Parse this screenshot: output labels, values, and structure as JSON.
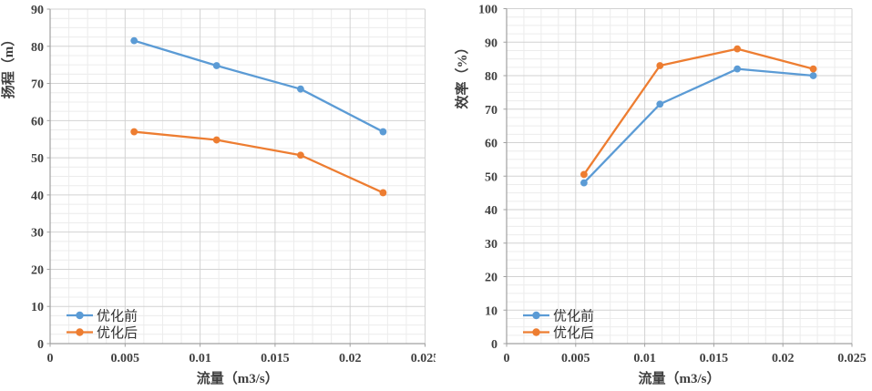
{
  "figure_title": "",
  "colors": {
    "background": "#ffffff",
    "series_blue": "#5B9BD5",
    "series_orange": "#ED7D31",
    "major_grid": "#D2D2D2",
    "minor_grid": "#ECECEC",
    "axis_line": "#A0A0A0",
    "tick_text": "#3f3f3f"
  },
  "chart_data": [
    {
      "type": "line",
      "title": "",
      "xlabel": "流量（m3/s）",
      "ylabel": "扬程（m）",
      "x": [
        0.0056,
        0.0111,
        0.0167,
        0.0222
      ],
      "series": [
        {
          "name": "优化前",
          "color": "#5B9BD5",
          "values": [
            81.5,
            74.8,
            68.5,
            57.0
          ]
        },
        {
          "name": "优化后",
          "color": "#ED7D31",
          "values": [
            57.0,
            54.8,
            50.7,
            40.6
          ]
        }
      ],
      "xlim": [
        0,
        0.025
      ],
      "ylim": [
        0,
        90
      ],
      "x_ticks": {
        "values": [
          0,
          0.005,
          0.01,
          0.015,
          0.02,
          0.025
        ],
        "labels": [
          "0",
          "0.005",
          "0.01",
          "0.015",
          "0.02",
          "0.025"
        ]
      },
      "y_ticks": {
        "values": [
          0,
          10,
          20,
          30,
          40,
          50,
          60,
          70,
          80,
          90
        ],
        "labels": [
          "0",
          "10",
          "20",
          "30",
          "40",
          "50",
          "60",
          "70",
          "80",
          "90"
        ]
      },
      "grid": {
        "major": true,
        "minor": true,
        "minor_divisions": 4
      },
      "legend": {
        "position": "inside-bottom-left",
        "items": [
          "优化前",
          "优化后"
        ]
      },
      "marker": "circle"
    },
    {
      "type": "line",
      "title": "",
      "xlabel": "流量（m3/s）",
      "ylabel": "效率（%）",
      "x": [
        0.0056,
        0.0111,
        0.0167,
        0.0222
      ],
      "series": [
        {
          "name": "优化前",
          "color": "#5B9BD5",
          "values": [
            48.0,
            71.5,
            82.0,
            80.0
          ]
        },
        {
          "name": "优化后",
          "color": "#ED7D31",
          "values": [
            50.5,
            83.0,
            88.0,
            82.0
          ]
        }
      ],
      "xlim": [
        0,
        0.025
      ],
      "ylim": [
        0,
        100
      ],
      "x_ticks": {
        "values": [
          0,
          0.005,
          0.01,
          0.015,
          0.02,
          0.025
        ],
        "labels": [
          "0",
          "0.005",
          "0.01",
          "0.015",
          "0.02",
          "0.025"
        ]
      },
      "y_ticks": {
        "values": [
          0,
          10,
          20,
          30,
          40,
          50,
          60,
          70,
          80,
          90,
          100
        ],
        "labels": [
          "0",
          "10",
          "20",
          "30",
          "40",
          "50",
          "60",
          "70",
          "80",
          "90",
          "100"
        ]
      },
      "grid": {
        "major": true,
        "minor": true,
        "minor_divisions": 4
      },
      "legend": {
        "position": "inside-bottom-left",
        "items": [
          "优化前",
          "优化后"
        ]
      },
      "marker": "circle"
    }
  ]
}
